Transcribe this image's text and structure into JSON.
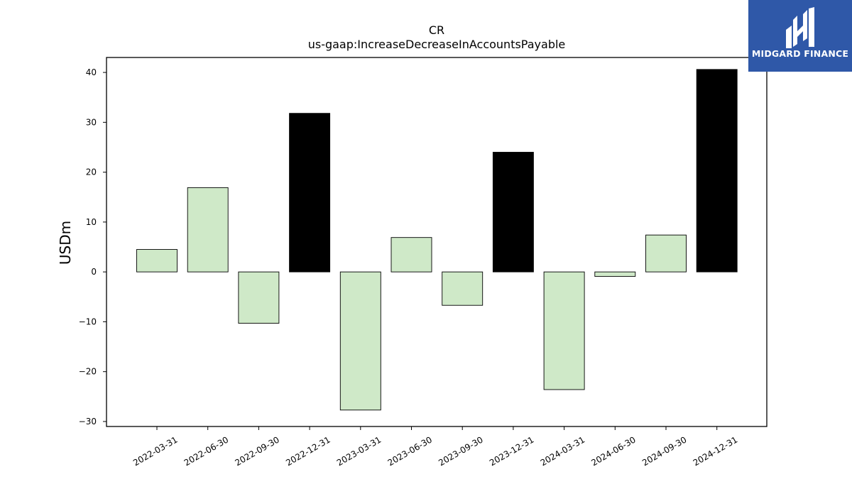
{
  "brand": {
    "name": "MIDGARD FINANCE",
    "background": "#2f58a8",
    "icon": "midgard-logo-icon"
  },
  "chart_data": {
    "type": "bar",
    "title": "CR",
    "subtitle": "us-gaap:IncreaseDecreaseInAccountsPayable",
    "xlabel": "",
    "ylabel": "USDm",
    "ylim": [
      -31,
      43
    ],
    "yticks": [
      -30,
      -20,
      -10,
      0,
      10,
      20,
      30,
      40
    ],
    "categories": [
      "2022-03-31",
      "2022-06-30",
      "2022-09-30",
      "2022-12-31",
      "2023-03-31",
      "2023-06-30",
      "2023-09-30",
      "2023-12-31",
      "2024-03-31",
      "2024-06-30",
      "2024-09-30",
      "2024-12-31"
    ],
    "values": [
      4.5,
      16.9,
      -10.3,
      31.8,
      -27.7,
      6.9,
      -6.7,
      24.0,
      -23.6,
      -0.9,
      7.4,
      40.6
    ],
    "bar_colors": [
      "#cfe9c8",
      "#cfe9c8",
      "#cfe9c8",
      "#000000",
      "#cfe9c8",
      "#cfe9c8",
      "#cfe9c8",
      "#000000",
      "#cfe9c8",
      "#cfe9c8",
      "#cfe9c8",
      "#000000"
    ],
    "grid": false,
    "legend": "none"
  }
}
